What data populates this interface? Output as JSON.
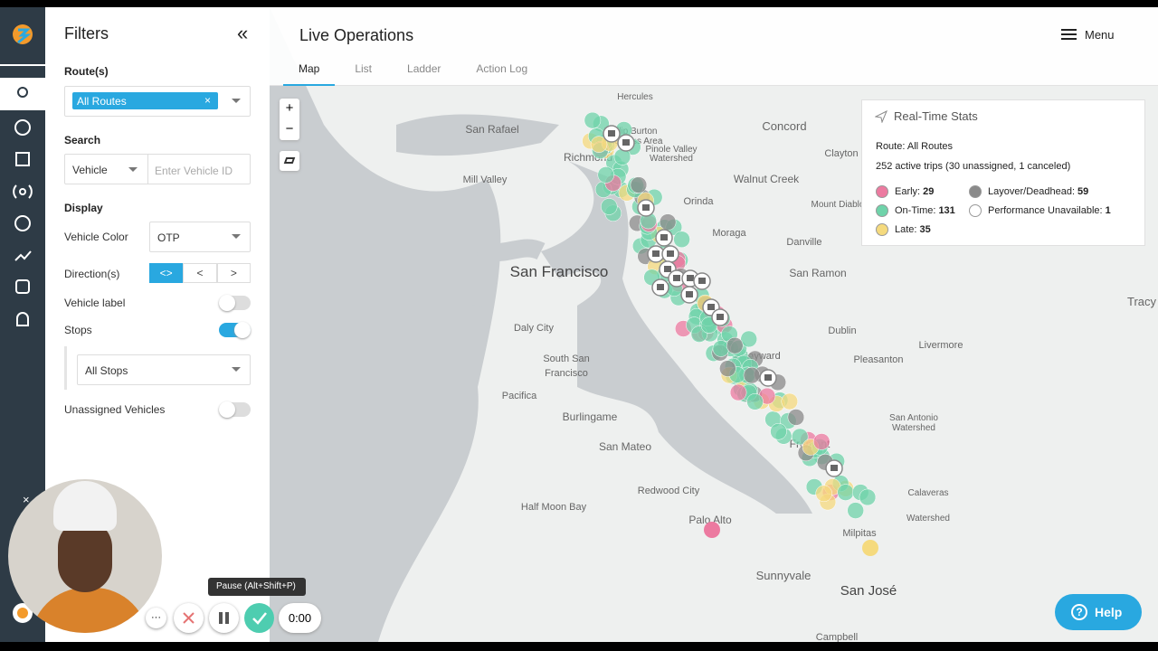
{
  "filters": {
    "title": "Filters",
    "collapse": "«",
    "route_label": "Route(s)",
    "route_chip": "All Routes",
    "chip_remove": "×",
    "search_label": "Search",
    "search_type": "Vehicle",
    "search_placeholder": "Enter Vehicle ID",
    "display_label": "Display",
    "vehicle_color_label": "Vehicle Color",
    "vehicle_color_value": "OTP",
    "directions_label": "Direction(s)",
    "direction_buttons": [
      "<>",
      "<",
      ">"
    ],
    "vehicle_label": "Vehicle label",
    "stops_label": "Stops",
    "stops_select": "All Stops",
    "unassigned_label": "Unassigned Vehicles"
  },
  "header": {
    "title": "Live Operations",
    "menu": "Menu",
    "tabs": [
      "Map",
      "List",
      "Ladder",
      "Action Log"
    ]
  },
  "map_controls": {
    "zoom_in": "+",
    "zoom_out": "−"
  },
  "map_labels": [
    "Hercules",
    "Phillip Burton",
    "Wilderness Area",
    "San Rafael",
    "Pinole Valley",
    "Watershed",
    "Concord",
    "Clayton",
    "Richmond",
    "Mill Valley",
    "Walnut Creek",
    "Orinda",
    "Mount Diablo",
    "Moraga",
    "Danville",
    "San Francisco",
    "San Ramon",
    "Tracy",
    "Daly City",
    "Dublin",
    "Livermore",
    "Pleasanton",
    "South San",
    "Francisco",
    "Pacifica",
    "Hayward",
    "Burlingame",
    "San Antonio",
    "Watershed",
    "San Mateo",
    "Fremont",
    "Redwood City",
    "Half Moon Bay",
    "Palo Alto",
    "Calaveras",
    "Watershed",
    "Milpitas",
    "Sunnyvale",
    "San José",
    "Campbell"
  ],
  "stats": {
    "title": "Real-Time Stats",
    "route": "Route: All Routes",
    "trips": "252 active trips (30 unassigned, 1 canceled)",
    "items": [
      {
        "name": "Early:",
        "value": 29,
        "color": "#ec7aa0"
      },
      {
        "name": "On-Time:",
        "value": 131,
        "color": "#6fd3aa"
      },
      {
        "name": "Late:",
        "value": 35,
        "color": "#f5da7e"
      },
      {
        "name": "Layover/Deadhead:",
        "value": 59,
        "color": "#8a8a8a"
      },
      {
        "name": "Performance Unavailable:",
        "value": 1,
        "color": "#ffffff"
      }
    ]
  },
  "recorder": {
    "tooltip": "Pause (Alt+Shift+P)",
    "timer": "0:00",
    "more": "···",
    "close": "×"
  },
  "help": {
    "label": "Help",
    "icon": "?"
  }
}
